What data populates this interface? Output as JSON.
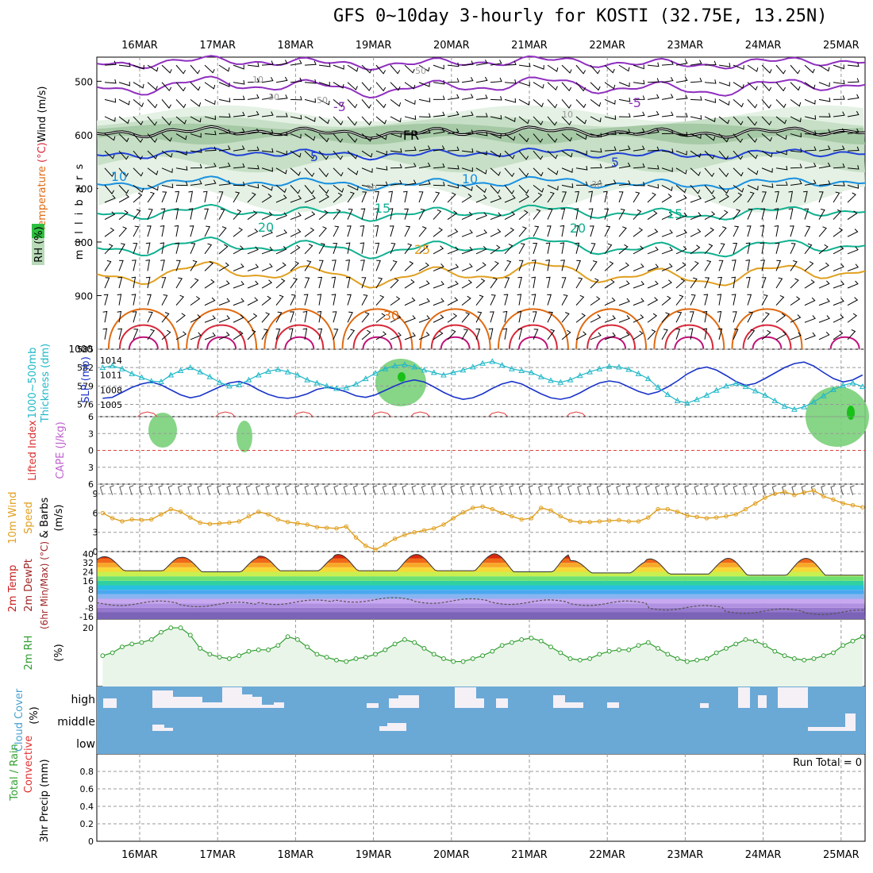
{
  "title": "GFS 0~10day 3-hourly for KOSTI (32.75E, 13.25N)",
  "dates": [
    "16MAR",
    "17MAR",
    "18MAR",
    "19MAR",
    "20MAR",
    "21MAR",
    "22MAR",
    "23MAR",
    "24MAR",
    "25MAR"
  ],
  "colors": {
    "purple": "#8f2fbf",
    "blue": "#2040d8",
    "lightblue": "#1890e0",
    "teal": "#10b090",
    "gold": "#e0a020",
    "orange": "#e06a10",
    "red": "#d82838",
    "magenta": "#c0107a",
    "cyan": "#20b8c8",
    "slp": "#1a34c8",
    "rh_green": "#2e9e2e",
    "cloud": "#6aa8d6"
  },
  "chart_data": [
    {
      "type": "contour-timeheight",
      "name": "upper",
      "ylabel_left": [
        "RH (%)",
        "Temperature (°C)",
        "Wind (m/s)"
      ],
      "ylabel_right": "m i l l i b a r s",
      "y_ticks": [
        500,
        600,
        700,
        800,
        900,
        1000
      ],
      "ylim": [
        455,
        1000
      ],
      "contour_labels": [
        "-5",
        "-5",
        "5",
        "5",
        "10",
        "10",
        "15",
        "15",
        "20",
        "20",
        "25",
        "30",
        "FR",
        "10",
        "30",
        "50",
        "50",
        "30",
        "10",
        "30"
      ],
      "isotherms_p": {
        "-5": 510,
        "FR": 595,
        "5": 635,
        "10": 690,
        "15": 745,
        "20": 810,
        "25": 860
      }
    },
    {
      "type": "line",
      "name": "thickness-slp",
      "ylabel_left": [
        "1000~500mb",
        "Thickness (dm)"
      ],
      "ylabel_right": "SLP (mb)",
      "left_ticks": [
        576,
        579,
        582,
        585
      ],
      "right_ticks": [
        1005,
        1008,
        1011,
        1014
      ],
      "thickness_dm": [
        581.5,
        582,
        582.3,
        581.8,
        581,
        580.4,
        579.8,
        579.7,
        580.8,
        581.5,
        582,
        581.3,
        580.5,
        579.6,
        579,
        579.2,
        580,
        580.8,
        581.4,
        581.7,
        581.3,
        580.8,
        580,
        579.5,
        579,
        578.6,
        578.7,
        579.3,
        580.2,
        581.1,
        581.8,
        582.3,
        582.5,
        582.1,
        581.6,
        581.2,
        580.8,
        581.2,
        581.6,
        582.1,
        582.7,
        583,
        582.4,
        581.8,
        581.5,
        581.2,
        580.5,
        579.9,
        579.6,
        580,
        580.7,
        581.3,
        581.8,
        582.2,
        582.1,
        581.7,
        581,
        580.2,
        578.8,
        577.6,
        576.6,
        576.2,
        576.8,
        577.5,
        578.3,
        579,
        579.4,
        578.9,
        578.2,
        577.5,
        576.6,
        575.7,
        575.2,
        575.6,
        576.4,
        577.4,
        578.4,
        579.1,
        579.5,
        578.9,
        578.2,
        577.3,
        576.4,
        575.9,
        576.2,
        577,
        577.9,
        578.6,
        579.2,
        579.4,
        578.7,
        578,
        577.3,
        576.9,
        576.4,
        576.4,
        577
      ],
      "slp_mb": [
        1006.8,
        1006.3,
        1006.5,
        1007.5,
        1008.5,
        1009.2,
        1009.6,
        1009,
        1008,
        1007,
        1006.4,
        1006.8,
        1007.7,
        1008.6,
        1009.4,
        1009.7,
        1009.1,
        1008,
        1007.1,
        1006.5,
        1006.3,
        1006.6,
        1007.2,
        1008.1,
        1008.5,
        1008.2,
        1007.6,
        1006.8,
        1006.5,
        1007,
        1007.9,
        1008.8,
        1009.6,
        1010,
        1009.6,
        1008.6,
        1007.5,
        1006.6,
        1006.1,
        1006.4,
        1007.2,
        1008.3,
        1009.2,
        1009.7,
        1009.2,
        1008.2,
        1007.2,
        1006.4,
        1006.1,
        1006.5,
        1007.4,
        1008.5,
        1009.4,
        1009.8,
        1009.5,
        1008.6,
        1007.7,
        1007.1,
        1007.6,
        1008.6,
        1009.8,
        1011.2,
        1012.2,
        1012.6,
        1012,
        1010.9,
        1009.7,
        1008.9,
        1009.3,
        1010.3,
        1011.4,
        1012.5,
        1013.3,
        1013.6,
        1012.8,
        1011.5,
        1010.3,
        1009.6,
        1010,
        1011,
        1012,
        1013,
        1013.6,
        1013.4,
        1012.3,
        1011,
        1009.7,
        1009.2,
        1009.6,
        1010.5,
        1011.2,
        1011.1,
        1010.4,
        1009.8,
        1010.2,
        1011.1,
        1012
      ]
    },
    {
      "type": "line",
      "name": "cape-li",
      "ylabel_left": [
        "Lifted Index",
        "CAPE (J/kg)"
      ],
      "y_ticks": [
        6,
        3,
        0,
        -3,
        -6
      ],
      "ylim": [
        6,
        -6
      ],
      "lifted_index_bumps_day": [
        0.1,
        1.1,
        2.1,
        3.1,
        3.6,
        4.6,
        5.6
      ]
    },
    {
      "type": "line",
      "name": "wind10m",
      "ylabel_left": [
        "10m Wind",
        "Speed",
        "& Barbs"
      ],
      "ylabel_right": "(m/s)",
      "y_ticks": [
        0,
        3,
        6,
        9
      ],
      "ylim": [
        0,
        10.5
      ],
      "speed_ms": [
        5.5,
        6,
        5.2,
        4.7,
        5,
        4.9,
        5,
        5.8,
        6.6,
        6.2,
        5.3,
        4.5,
        4.3,
        4.4,
        4.5,
        4.7,
        5.5,
        6.2,
        5.8,
        5,
        4.6,
        4.4,
        4.2,
        3.8,
        3.7,
        3.6,
        3.9,
        2.2,
        0.9,
        0.3,
        1.1,
        2,
        2.6,
        3,
        3.3,
        3.6,
        4.2,
        5.2,
        6.1,
        6.8,
        7,
        6.6,
        6,
        5.5,
        5,
        5.2,
        6.8,
        6.4,
        5.5,
        4.8,
        4.6,
        4.6,
        4.7,
        4.8,
        4.9,
        4.7,
        4.7,
        5.3,
        6.6,
        6.6,
        6.2,
        5.6,
        5.4,
        5.2,
        5.3,
        5.5,
        5.8,
        6.6,
        7.5,
        8.4,
        9,
        9.3,
        8.8,
        9.2,
        9.5,
        8.6,
        8.1,
        7.5,
        7.2,
        6.9,
        6.8,
        6.7,
        6.5,
        6.6,
        6.7,
        6.5,
        6.3,
        6,
        5.7,
        5.2,
        4.8,
        4.7,
        4.9,
        5.2,
        5.7,
        6.1,
        6.6,
        6.2,
        5.6,
        5.1,
        4.9,
        4.8,
        4.8,
        5.2,
        6.1,
        6.4
      ]
    },
    {
      "type": "area",
      "name": "temp-dewpt",
      "ylabel_left": [
        "2m Temp",
        "2m DewPt",
        "(6hr Min/Max) (°C)"
      ],
      "y_ticks": [
        40,
        32,
        24,
        16,
        8,
        0,
        -8,
        -16
      ],
      "ylim": [
        -18,
        42
      ],
      "temp_max_day": [
        37.5,
        37,
        38,
        39.5,
        39.5,
        40,
        34,
        35.5,
        36
      ],
      "temp_min_day": [
        25,
        24,
        25,
        25,
        25,
        24,
        23,
        22,
        21
      ],
      "dewpt_c": [
        -4,
        -5,
        -3,
        -1,
        -2,
        -3,
        -4,
        -8,
        -11,
        -12
      ]
    },
    {
      "type": "line",
      "name": "rh2m",
      "ylabel_left": [
        "2m RH"
      ],
      "ylabel_right": "(%)",
      "y_ticks": [
        20
      ],
      "ylim": [
        0,
        23
      ],
      "rh_pct": [
        10,
        10.5,
        11.5,
        13.5,
        14.5,
        15,
        16,
        18.5,
        20,
        20,
        17.5,
        13,
        11,
        10,
        9.5,
        10.5,
        12,
        12.5,
        12.5,
        14,
        17,
        16,
        13.5,
        11,
        10,
        9,
        8.5,
        9.5,
        10,
        11,
        12.5,
        14.5,
        16,
        15,
        13,
        11,
        9.5,
        8.5,
        8.5,
        9.5,
        10.5,
        12,
        14,
        15,
        16,
        16.5,
        15.5,
        13.5,
        11.5,
        9.5,
        9,
        9.5,
        11,
        12,
        12.5,
        12.5,
        14,
        15,
        13,
        11,
        9.5,
        8.5,
        9,
        9.5,
        11.5,
        13,
        14.5,
        16,
        15.5,
        14,
        12,
        10.5,
        9.5,
        9,
        9.5,
        10.5,
        11.5,
        14,
        15.5,
        17,
        14,
        12,
        10,
        9.5,
        9.5,
        10,
        9.5,
        8.5,
        8.5,
        7.5,
        7.5,
        7.5,
        8,
        10,
        11,
        12.5,
        14,
        14.5,
        13.5,
        11.5,
        10,
        9,
        8.5,
        8.5,
        9.5,
        11,
        12.5,
        13.5,
        14,
        13.5,
        12
      ]
    },
    {
      "type": "bar",
      "name": "cloud-cover",
      "ylabel_left": [
        "Cloud Cover",
        "(%)"
      ],
      "levels": [
        "high",
        "middle",
        "low"
      ]
    },
    {
      "type": "bar",
      "name": "precip",
      "ylabel_left": [
        "Total / Rain",
        "Convective",
        "3hr Precip (mm)"
      ],
      "y_ticks": [
        0,
        0.2,
        0.4,
        0.6,
        0.8
      ],
      "ylim": [
        0,
        1
      ],
      "values": [],
      "annotation": "Run Total = 0"
    }
  ]
}
